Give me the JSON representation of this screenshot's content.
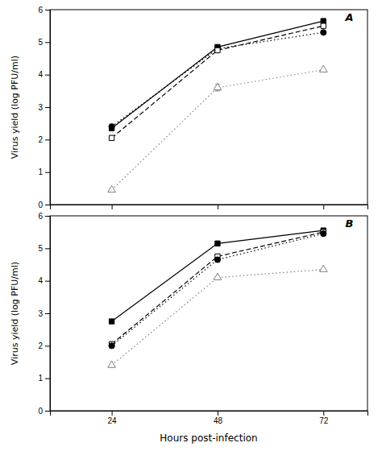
{
  "chart_data": [
    {
      "type": "line",
      "title": "A",
      "ylabel": "Virus yield (log PFU/ml)",
      "x": [
        24,
        48,
        72
      ],
      "xlim": [
        10,
        82
      ],
      "xticks": [
        24,
        48,
        72
      ],
      "ylim": [
        0,
        6
      ],
      "yticks": [
        0,
        1,
        2,
        3,
        4,
        5,
        6
      ],
      "tick_labels": "y",
      "grid": false,
      "series": [
        {
          "color": "black",
          "marker": "square",
          "line_style": "solid",
          "values": [
            2.35,
            4.85,
            5.65
          ],
          "errors": [
            0.08,
            0.07,
            0.06
          ]
        },
        {
          "color": "black",
          "marker": "circle",
          "line_style": "dotted",
          "values": [
            2.4,
            4.8,
            5.3
          ],
          "errors": [
            0.07,
            0.06,
            0.05
          ]
        },
        {
          "color": "black",
          "marker": "square-open",
          "line_style": "dashed",
          "values": [
            2.05,
            4.75,
            5.5
          ],
          "errors": [
            0.07,
            0.06,
            0.05
          ]
        },
        {
          "color": "gray",
          "marker": "triangle-open",
          "line_style": "dotted",
          "values": [
            0.45,
            3.6,
            4.15
          ],
          "errors": [
            0.0,
            0.1,
            0.0
          ]
        }
      ]
    },
    {
      "type": "line",
      "title": "B",
      "ylabel": "Virus yield (log PFU/ml)",
      "xlabel": "Hours post-infection",
      "x": [
        24,
        48,
        72
      ],
      "xlim": [
        10,
        82
      ],
      "xticks": [
        24,
        48,
        72
      ],
      "ylim": [
        0,
        6
      ],
      "yticks": [
        0,
        1,
        2,
        3,
        4,
        5,
        6
      ],
      "grid": false,
      "series": [
        {
          "color": "black",
          "marker": "square",
          "line_style": "solid",
          "values": [
            2.75,
            5.15,
            5.55
          ],
          "errors": [
            0.06,
            0.06,
            0.05
          ]
        },
        {
          "color": "black",
          "marker": "square-open",
          "line_style": "dashed",
          "values": [
            2.05,
            4.75,
            5.5
          ],
          "errors": [
            0.07,
            0.06,
            0.04
          ]
        },
        {
          "color": "black",
          "marker": "circle",
          "line_style": "dotted",
          "values": [
            2.0,
            4.65,
            5.45
          ],
          "errors": [
            0.07,
            0.06,
            0.04
          ]
        },
        {
          "color": "gray",
          "marker": "triangle-open",
          "line_style": "dotted",
          "values": [
            1.4,
            4.1,
            4.35
          ],
          "errors": [
            0.0,
            0.0,
            0.0
          ]
        }
      ]
    }
  ]
}
